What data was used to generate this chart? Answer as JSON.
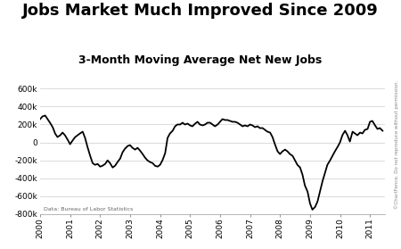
{
  "title": "Jobs Market Much Improved Since 2009",
  "subtitle": "3-Month Moving Average Net New Jobs",
  "source": "Data: Bureau of Labor Statistics",
  "copyright": "©ChartFence. Do not reproduce without permission.",
  "background_color": "#ffffff",
  "line_color": "#000000",
  "line_width": 1.3,
  "ylim": [
    -800000,
    700000
  ],
  "yticks": [
    -800000,
    -600000,
    -400000,
    -200000,
    0,
    200000,
    400000,
    600000
  ],
  "ytick_labels": [
    "-800k",
    "-600k",
    "-400k",
    "-200k",
    "0",
    "200k",
    "400k",
    "600k"
  ],
  "grid_color": "#cccccc",
  "x_values": [
    2000.0,
    2000.08,
    2000.17,
    2000.25,
    2000.33,
    2000.42,
    2000.5,
    2000.58,
    2000.67,
    2000.75,
    2000.83,
    2000.92,
    2001.0,
    2001.08,
    2001.17,
    2001.25,
    2001.33,
    2001.42,
    2001.5,
    2001.58,
    2001.67,
    2001.75,
    2001.83,
    2001.92,
    2002.0,
    2002.08,
    2002.17,
    2002.25,
    2002.33,
    2002.42,
    2002.5,
    2002.58,
    2002.67,
    2002.75,
    2002.83,
    2002.92,
    2003.0,
    2003.08,
    2003.17,
    2003.25,
    2003.33,
    2003.42,
    2003.5,
    2003.58,
    2003.67,
    2003.75,
    2003.83,
    2003.92,
    2004.0,
    2004.08,
    2004.17,
    2004.25,
    2004.33,
    2004.42,
    2004.5,
    2004.58,
    2004.67,
    2004.75,
    2004.83,
    2004.92,
    2005.0,
    2005.08,
    2005.17,
    2005.25,
    2005.33,
    2005.42,
    2005.5,
    2005.58,
    2005.67,
    2005.75,
    2005.83,
    2005.92,
    2006.0,
    2006.08,
    2006.17,
    2006.25,
    2006.33,
    2006.42,
    2006.5,
    2006.58,
    2006.67,
    2006.75,
    2006.83,
    2006.92,
    2007.0,
    2007.08,
    2007.17,
    2007.25,
    2007.33,
    2007.42,
    2007.5,
    2007.58,
    2007.67,
    2007.75,
    2007.83,
    2007.92,
    2008.0,
    2008.08,
    2008.17,
    2008.25,
    2008.33,
    2008.42,
    2008.5,
    2008.58,
    2008.67,
    2008.75,
    2008.83,
    2008.92,
    2009.0,
    2009.08,
    2009.17,
    2009.25,
    2009.33,
    2009.42,
    2009.5,
    2009.58,
    2009.67,
    2009.75,
    2009.83,
    2009.92,
    2010.0,
    2010.08,
    2010.17,
    2010.25,
    2010.33,
    2010.42,
    2010.5,
    2010.58,
    2010.67,
    2010.75,
    2010.83,
    2010.92,
    2011.0,
    2011.08,
    2011.17,
    2011.25,
    2011.33,
    2011.42
  ],
  "y_values": [
    260000,
    290000,
    300000,
    260000,
    220000,
    170000,
    100000,
    60000,
    80000,
    110000,
    80000,
    30000,
    -20000,
    20000,
    60000,
    80000,
    100000,
    120000,
    50000,
    -50000,
    -150000,
    -230000,
    -250000,
    -240000,
    -270000,
    -260000,
    -240000,
    -200000,
    -230000,
    -280000,
    -260000,
    -220000,
    -180000,
    -110000,
    -70000,
    -40000,
    -30000,
    -60000,
    -80000,
    -60000,
    -90000,
    -130000,
    -170000,
    -200000,
    -220000,
    -230000,
    -260000,
    -270000,
    -250000,
    -200000,
    -120000,
    50000,
    100000,
    130000,
    180000,
    200000,
    200000,
    220000,
    200000,
    210000,
    190000,
    180000,
    210000,
    230000,
    200000,
    190000,
    200000,
    220000,
    220000,
    200000,
    180000,
    200000,
    230000,
    260000,
    250000,
    250000,
    240000,
    230000,
    230000,
    220000,
    200000,
    180000,
    190000,
    180000,
    200000,
    190000,
    170000,
    180000,
    160000,
    160000,
    140000,
    120000,
    110000,
    60000,
    -20000,
    -100000,
    -130000,
    -100000,
    -80000,
    -100000,
    -130000,
    -150000,
    -200000,
    -250000,
    -280000,
    -360000,
    -480000,
    -550000,
    -680000,
    -750000,
    -720000,
    -660000,
    -550000,
    -430000,
    -340000,
    -250000,
    -200000,
    -150000,
    -100000,
    -50000,
    0,
    80000,
    130000,
    80000,
    10000,
    120000,
    100000,
    80000,
    110000,
    100000,
    140000,
    150000,
    230000,
    240000,
    190000,
    150000,
    160000,
    130000
  ],
  "xtick_positions": [
    2000,
    2001,
    2002,
    2003,
    2004,
    2005,
    2006,
    2007,
    2008,
    2009,
    2010,
    2011
  ],
  "xtick_labels": [
    "2000",
    "2001",
    "2002",
    "2003",
    "2004",
    "2005",
    "2006",
    "2007",
    "2008",
    "2009",
    "2010",
    "2011"
  ],
  "title_fontsize": 13,
  "subtitle_fontsize": 9,
  "ytick_fontsize": 6.5,
  "xtick_fontsize": 6.5
}
